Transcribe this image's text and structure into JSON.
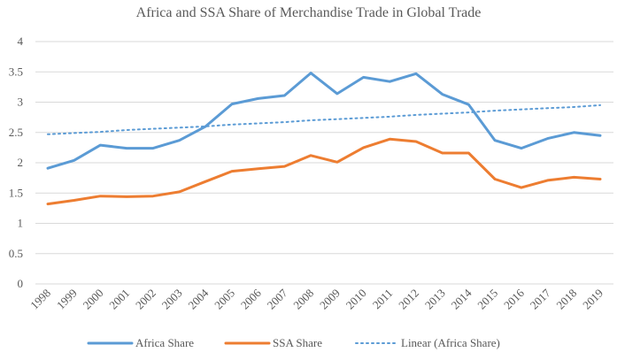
{
  "chart_data": {
    "type": "line",
    "title": "Africa and SSA Share of Merchandise Trade in Global Trade",
    "xlabel": "",
    "ylabel": "",
    "ylim": [
      0,
      4
    ],
    "yticks": [
      "0",
      "0.5",
      "1",
      "1.5",
      "2",
      "2.5",
      "3",
      "3.5",
      "4"
    ],
    "ytick_values": [
      0,
      0.5,
      1,
      1.5,
      2,
      2.5,
      3,
      3.5,
      4
    ],
    "grid": true,
    "legend_position": "bottom",
    "categories": [
      "1998",
      "1999",
      "2000",
      "2001",
      "2002",
      "2003",
      "2004",
      "2005",
      "2006",
      "2007",
      "2008",
      "2009",
      "2010",
      "2011",
      "2012",
      "2013",
      "2014",
      "2015",
      "2016",
      "2017",
      "2018",
      "2019"
    ],
    "series": [
      {
        "name": "Africa Share",
        "color": "#5b9bd5",
        "style": "solid",
        "values": [
          1.91,
          2.04,
          2.29,
          2.24,
          2.24,
          2.37,
          2.6,
          2.97,
          3.06,
          3.11,
          3.48,
          3.14,
          3.41,
          3.34,
          3.47,
          3.13,
          2.96,
          2.37,
          2.24,
          2.4,
          2.5,
          2.45
        ]
      },
      {
        "name": "SSA Share",
        "color": "#ed7d31",
        "style": "solid",
        "values": [
          1.32,
          1.38,
          1.45,
          1.44,
          1.45,
          1.52,
          1.69,
          1.86,
          1.9,
          1.94,
          2.12,
          2.01,
          2.25,
          2.39,
          2.35,
          2.16,
          2.16,
          1.73,
          1.59,
          1.71,
          1.76,
          1.73
        ]
      },
      {
        "name": "Linear (Africa Share)",
        "color": "#5b9bd5",
        "style": "dotted",
        "values": [
          2.47,
          2.49,
          2.51,
          2.54,
          2.56,
          2.58,
          2.6,
          2.63,
          2.65,
          2.67,
          2.7,
          2.72,
          2.74,
          2.76,
          2.79,
          2.81,
          2.83,
          2.86,
          2.88,
          2.9,
          2.92,
          2.95
        ]
      }
    ]
  }
}
